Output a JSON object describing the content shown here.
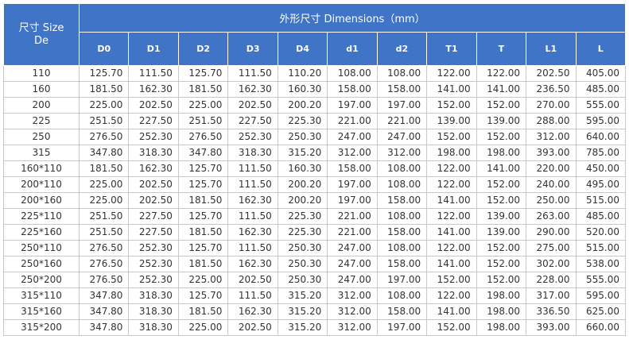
{
  "header": {
    "size_line1": "尺寸 Size",
    "size_line2": "De",
    "group_title": "外形尺寸 Dimensions（mm）",
    "columns": [
      "D0",
      "D1",
      "D2",
      "D3",
      "D4",
      "d1",
      "d2",
      "T1",
      "T",
      "L1",
      "L"
    ]
  },
  "rows": [
    [
      "110",
      "125.70",
      "111.50",
      "125.70",
      "111.50",
      "110.20",
      "108.00",
      "108.00",
      "122.00",
      "122.00",
      "202.50",
      "405.00"
    ],
    [
      "160",
      "181.50",
      "162.30",
      "181.50",
      "162.30",
      "160.30",
      "158.00",
      "158.00",
      "141.00",
      "141.00",
      "236.50",
      "485.00"
    ],
    [
      "200",
      "225.00",
      "202.50",
      "225.00",
      "202.50",
      "200.20",
      "197.00",
      "197.00",
      "152.00",
      "152.00",
      "270.00",
      "555.00"
    ],
    [
      "225",
      "251.50",
      "227.50",
      "251.50",
      "227.50",
      "225.30",
      "221.00",
      "221.00",
      "139.00",
      "139.00",
      "288.00",
      "595.00"
    ],
    [
      "250",
      "276.50",
      "252.30",
      "276.50",
      "252.30",
      "250.30",
      "247.00",
      "247.00",
      "152.00",
      "152.00",
      "312.00",
      "640.00"
    ],
    [
      "315",
      "347.80",
      "318.30",
      "347.80",
      "318.30",
      "315.20",
      "312.00",
      "312.00",
      "198.00",
      "198.00",
      "393.00",
      "785.00"
    ],
    [
      "160*110",
      "181.50",
      "162.30",
      "125.70",
      "111.50",
      "160.30",
      "158.00",
      "108.00",
      "122.00",
      "141.00",
      "220.00",
      "450.00"
    ],
    [
      "200*110",
      "225.00",
      "202.50",
      "125.70",
      "111.50",
      "200.20",
      "197.00",
      "108.00",
      "122.00",
      "152.00",
      "240.00",
      "495.00"
    ],
    [
      "200*160",
      "225.00",
      "202.50",
      "181.50",
      "162.30",
      "200.20",
      "197.00",
      "158.00",
      "141.00",
      "152.00",
      "250.00",
      "515.00"
    ],
    [
      "225*110",
      "251.50",
      "227.50",
      "125.70",
      "111.50",
      "225.30",
      "221.00",
      "108.00",
      "122.00",
      "139.00",
      "263.00",
      "485.00"
    ],
    [
      "225*160",
      "251.50",
      "227.50",
      "181.50",
      "162.30",
      "225.30",
      "221.00",
      "158.00",
      "141.00",
      "139.00",
      "290.00",
      "520.00"
    ],
    [
      "250*110",
      "276.50",
      "252.30",
      "125.70",
      "111.50",
      "250.30",
      "247.00",
      "108.00",
      "122.00",
      "152.00",
      "275.00",
      "515.00"
    ],
    [
      "250*160",
      "276.50",
      "252.30",
      "181.50",
      "162.30",
      "250.30",
      "247.00",
      "158.00",
      "141.00",
      "152.00",
      "302.00",
      "538.00"
    ],
    [
      "250*200",
      "276.50",
      "252.30",
      "225.00",
      "202.50",
      "250.30",
      "247.00",
      "197.00",
      "152.00",
      "152.00",
      "228.00",
      "555.00"
    ],
    [
      "315*110",
      "347.80",
      "318.30",
      "125.70",
      "111.50",
      "315.20",
      "312.00",
      "108.00",
      "122.00",
      "198.00",
      "317.00",
      "595.00"
    ],
    [
      "315*160",
      "347.80",
      "318.30",
      "181.50",
      "162.30",
      "315.20",
      "312.00",
      "158.00",
      "141.00",
      "198.00",
      "336.50",
      "625.00"
    ],
    [
      "315*200",
      "347.80",
      "318.30",
      "225.00",
      "202.50",
      "315.20",
      "312.00",
      "197.00",
      "152.00",
      "198.00",
      "393.00",
      "660.00"
    ]
  ],
  "colors": {
    "header_bg": "#3f74c7",
    "header_text": "#ffffff",
    "border": "#c8c8c8",
    "cell_text": "#333333"
  }
}
